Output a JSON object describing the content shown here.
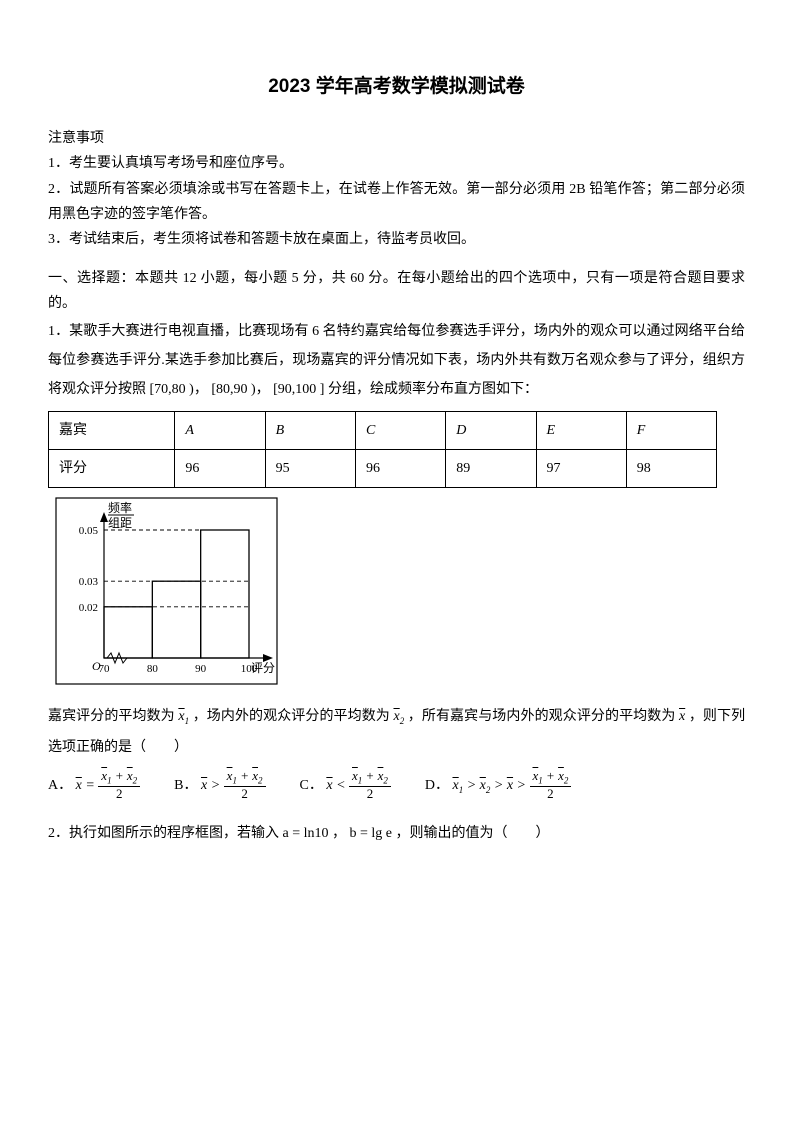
{
  "title": "2023 学年高考数学模拟测试卷",
  "notes_heading": "注意事项",
  "notes": [
    "1．考生要认真填写考场号和座位序号。",
    "2．试题所有答案必须填涂或书写在答题卡上，在试卷上作答无效。第一部分必须用 2B 铅笔作答；第二部分必须用黑色字迹的签字笔作答。",
    "3．考试结束后，考生须将试卷和答题卡放在桌面上，待监考员收回。"
  ],
  "section1_heading": "一、选择题：本题共 12 小题，每小题 5 分，共 60 分。在每小题给出的四个选项中，只有一项是符合题目要求的。",
  "q1_text_a": "1．某歌手大赛进行电视直播，比赛现场有 6 名特约嘉宾给每位参赛选手评分，场内外的观众可以通过网络平台给每位参赛选手评分.某选手参加比赛后，现场嘉宾的评分情况如下表，场内外共有数万名观众参与了评分，组织方将观众评分按照",
  "q1_intervals": "[70,80 )， [80,90 )， [90,100 ]",
  "q1_text_b": "分组，绘成频率分布直方图如下：",
  "table": {
    "row1_label": "嘉宾",
    "row2_label": "评分",
    "headers": [
      "A",
      "B",
      "C",
      "D",
      "E",
      "F"
    ],
    "scores": [
      "96",
      "95",
      "96",
      "89",
      "97",
      "98"
    ]
  },
  "chart": {
    "ylabel_top": "频率",
    "ylabel_bottom": "组距",
    "xlabel": "评分",
    "yticks": [
      "0.05",
      "0.03",
      "0.02"
    ],
    "yvals": [
      0.05,
      0.03,
      0.02
    ],
    "xticks": [
      "70",
      "80",
      "90",
      "100"
    ],
    "bars": [
      {
        "x0": 70,
        "x1": 80,
        "h": 0.02
      },
      {
        "x0": 80,
        "x1": 90,
        "h": 0.03
      },
      {
        "x0": 90,
        "x1": 100,
        "h": 0.05
      }
    ],
    "stroke": "#000000",
    "bg": "#ffffff"
  },
  "q1_text_c": "嘉宾评分的平均数为",
  "q1_text_d": "，场内外的观众评分的平均数为",
  "q1_text_e": "，所有嘉宾与场内外的观众评分的平均数为",
  "q1_text_f": "，则下列选项正确的是（　　）",
  "options": {
    "A": "A．",
    "B": "B．",
    "C": "C．",
    "D": "D．"
  },
  "q2_text": "2．执行如图所示的程序框图，若输入 a = ln10 ， b = lg e ，则输出的值为（　　）"
}
